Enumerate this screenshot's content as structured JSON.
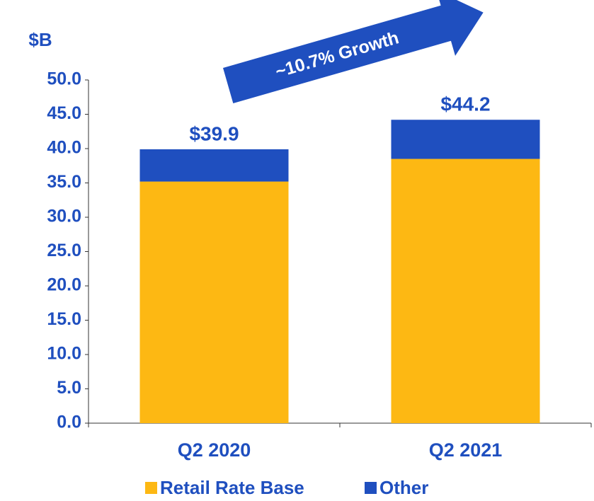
{
  "chart_data": {
    "type": "stacked_bar",
    "y_axis_label": "$B",
    "annotation": "~10.7% Growth",
    "categories": [
      "Q2 2020",
      "Q2 2021"
    ],
    "series": [
      {
        "name": "Retail Rate Base",
        "color": "#fdb813",
        "values": [
          35.2,
          38.5
        ]
      },
      {
        "name": "Other",
        "color": "#1f4fbf",
        "values": [
          4.7,
          5.7
        ]
      }
    ],
    "totals": [
      39.9,
      44.2
    ],
    "value_labels": [
      "$39.9",
      "$44.2"
    ],
    "ylim": [
      0,
      50
    ],
    "yticks": [
      {
        "value": 0,
        "label": "0.0"
      },
      {
        "value": 5,
        "label": "5.0"
      },
      {
        "value": 10,
        "label": "10.0"
      },
      {
        "value": 15,
        "label": "15.0"
      },
      {
        "value": 20,
        "label": "20.0"
      },
      {
        "value": 25,
        "label": "25.0"
      },
      {
        "value": 30,
        "label": "30.0"
      },
      {
        "value": 35,
        "label": "35.0"
      },
      {
        "value": 40,
        "label": "40.0"
      },
      {
        "value": 45,
        "label": "45.0"
      },
      {
        "value": 50,
        "label": "50.0"
      }
    ]
  }
}
